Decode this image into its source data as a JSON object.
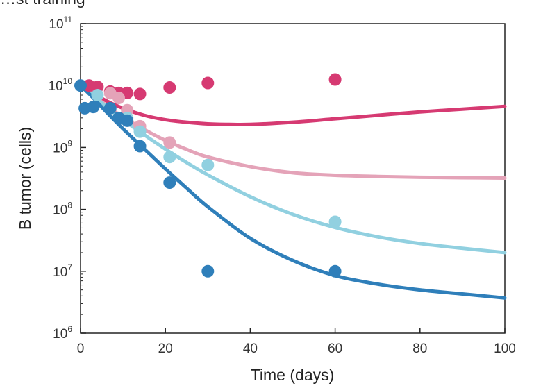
{
  "chart_data": {
    "type": "scatter",
    "title": "…st training",
    "xlabel": "Time (days)",
    "ylabel": "B tumor (cells)",
    "xlim": [
      0,
      100
    ],
    "ylim_log10": [
      6,
      11
    ],
    "yscale": "log",
    "x_ticks": [
      0,
      20,
      40,
      60,
      80,
      100
    ],
    "y_ticks": [
      {
        "base": "10",
        "exp": "6"
      },
      {
        "base": "10",
        "exp": "7"
      },
      {
        "base": "10",
        "exp": "8"
      },
      {
        "base": "10",
        "exp": "9"
      },
      {
        "base": "10",
        "exp": "10"
      },
      {
        "base": "10",
        "exp": "11"
      }
    ],
    "series": [
      {
        "name": "series-magenta",
        "color": "#d63a72",
        "points": [
          [
            2,
            10000000000.0
          ],
          [
            4,
            9500000000.0
          ],
          [
            7,
            8000000000.0
          ],
          [
            9,
            7600000000.0
          ],
          [
            11,
            7600000000.0
          ],
          [
            14,
            7300000000.0
          ],
          [
            21,
            9300000000.0
          ],
          [
            30,
            11000000000.0
          ],
          [
            60,
            12500000000.0
          ]
        ],
        "curve": [
          [
            0,
            10000000000.0
          ],
          [
            3,
            7500000000.0
          ],
          [
            6,
            5700000000.0
          ],
          [
            10,
            4300000000.0
          ],
          [
            15,
            3300000000.0
          ],
          [
            20,
            2800000000.0
          ],
          [
            25,
            2550000000.0
          ],
          [
            30,
            2400000000.0
          ],
          [
            35,
            2350000000.0
          ],
          [
            40,
            2350000000.0
          ],
          [
            50,
            2550000000.0
          ],
          [
            60,
            2900000000.0
          ],
          [
            70,
            3300000000.0
          ],
          [
            80,
            3750000000.0
          ],
          [
            90,
            4150000000.0
          ],
          [
            100,
            4600000000.0
          ]
        ]
      },
      {
        "name": "series-pink",
        "color": "#e4a3b8",
        "points": [
          [
            7,
            7500000000.0
          ],
          [
            9,
            6300000000.0
          ],
          [
            11,
            4000000000.0
          ],
          [
            14,
            2200000000.0
          ],
          [
            21,
            1200000000.0
          ]
        ],
        "curve": [
          [
            0,
            10000000000.0
          ],
          [
            3,
            7000000000.0
          ],
          [
            6,
            4800000000.0
          ],
          [
            10,
            3100000000.0
          ],
          [
            15,
            1950000000.0
          ],
          [
            20,
            1300000000.0
          ],
          [
            25,
            930000000.0
          ],
          [
            30,
            700000000.0
          ],
          [
            40,
            490000000.0
          ],
          [
            50,
            390000000.0
          ],
          [
            60,
            355000000.0
          ],
          [
            70,
            340000000.0
          ],
          [
            80,
            330000000.0
          ],
          [
            90,
            325000000.0
          ],
          [
            100,
            320000000.0
          ]
        ]
      },
      {
        "name": "series-lightblue",
        "color": "#91d0e0",
        "points": [
          [
            4,
            7000000000.0
          ],
          [
            11,
            3000000000.0
          ],
          [
            14,
            1800000000.0
          ],
          [
            21,
            700000000.0
          ],
          [
            30,
            520000000.0
          ],
          [
            60,
            63000000.0
          ]
        ],
        "curve": [
          [
            0,
            10000000000.0
          ],
          [
            3,
            6900000000.0
          ],
          [
            6,
            4600000000.0
          ],
          [
            10,
            2800000000.0
          ],
          [
            15,
            1600000000.0
          ],
          [
            20,
            940000000.0
          ],
          [
            25,
            570000000.0
          ],
          [
            30,
            360000000.0
          ],
          [
            40,
            160000000.0
          ],
          [
            50,
            83000000.0
          ],
          [
            60,
            51000000.0
          ],
          [
            70,
            36000000.0
          ],
          [
            80,
            28000000.0
          ],
          [
            90,
            23500000.0
          ],
          [
            100,
            20000000.0
          ]
        ]
      },
      {
        "name": "series-blue",
        "color": "#2f7fba",
        "points": [
          [
            0,
            10000000000.0
          ],
          [
            1,
            4300000000.0
          ],
          [
            3,
            4500000000.0
          ],
          [
            7,
            4300000000.0
          ],
          [
            9,
            3000000000.0
          ],
          [
            11,
            2700000000.0
          ],
          [
            14,
            1050000000.0
          ],
          [
            21,
            270000000.0
          ],
          [
            30,
            10000000.0
          ],
          [
            60,
            10000000.0
          ]
        ],
        "curve": [
          [
            0,
            10000000000.0
          ],
          [
            3,
            6300000000.0
          ],
          [
            6,
            3800000000.0
          ],
          [
            10,
            2000000000.0
          ],
          [
            15,
            950000000.0
          ],
          [
            20,
            450000000.0
          ],
          [
            25,
            220000000.0
          ],
          [
            30,
            110000000.0
          ],
          [
            40,
            34000000.0
          ],
          [
            50,
            15000000.0
          ],
          [
            60,
            8500000.0
          ],
          [
            70,
            6200000.0
          ],
          [
            80,
            5000000.0
          ],
          [
            90,
            4300000.0
          ],
          [
            100,
            3700000.0
          ]
        ]
      }
    ]
  }
}
